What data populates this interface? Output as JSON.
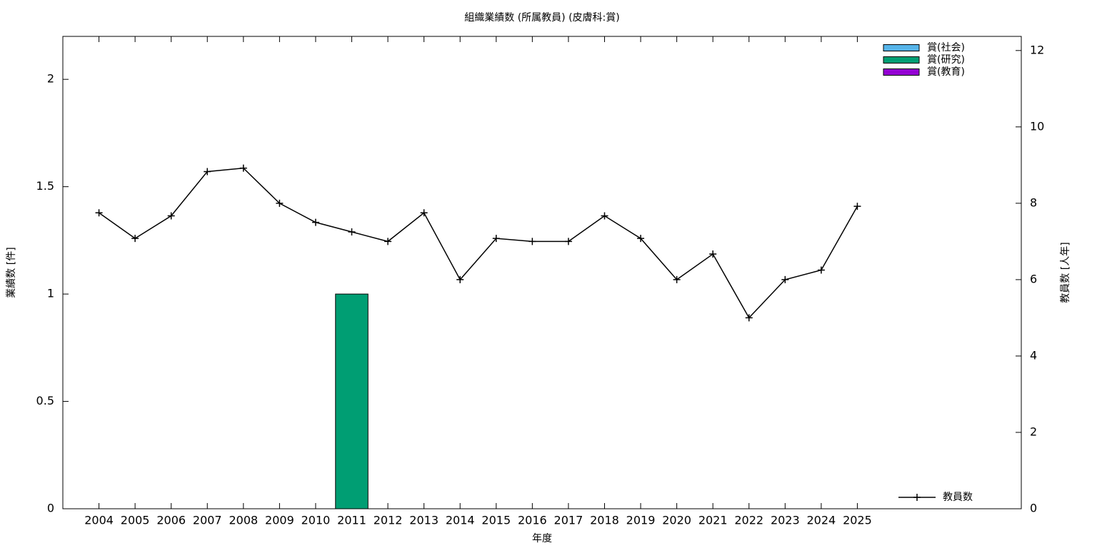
{
  "chart_data": {
    "type": "bar",
    "stacked": true,
    "title": "組織業績数 (所属教員) (皮膚科:賞)",
    "xlabel": "年度",
    "ylabel": "業績数 [件]",
    "y2label": "教員数 [人年]",
    "x": [
      2004,
      2005,
      2006,
      2007,
      2008,
      2009,
      2010,
      2011,
      2012,
      2013,
      2014,
      2015,
      2016,
      2017,
      2018,
      2019,
      2020,
      2021,
      2022,
      2023,
      2024,
      2025
    ],
    "xlim": [
      2003,
      2029.54
    ],
    "xticks": [
      2004,
      2005,
      2006,
      2007,
      2008,
      2009,
      2010,
      2011,
      2012,
      2013,
      2014,
      2015,
      2016,
      2017,
      2018,
      2019,
      2020,
      2021,
      2022,
      2023,
      2024,
      2025
    ],
    "ylim": [
      0,
      2.2
    ],
    "yticks": [
      0,
      0.5,
      1,
      1.5,
      2
    ],
    "y2lim": [
      0,
      12.37
    ],
    "y2ticks": [
      0,
      2,
      4,
      6,
      8,
      10,
      12
    ],
    "legend": "top-right",
    "series": [
      {
        "name": "賞(社会)",
        "color": "#56b4e9",
        "values": [
          0,
          0,
          0,
          0,
          0,
          0,
          0,
          0,
          0,
          0,
          0,
          0,
          0,
          0,
          0,
          0,
          0,
          0,
          0,
          0,
          0,
          0
        ]
      },
      {
        "name": "賞(研究)",
        "color": "#009e73",
        "values": [
          0,
          0,
          0,
          0,
          0,
          0,
          0,
          1,
          0,
          0,
          0,
          0,
          0,
          0,
          0,
          0,
          0,
          0,
          0,
          0,
          0,
          0
        ]
      },
      {
        "name": "賞(教育)",
        "color": "#9400d3",
        "values": [
          0,
          0,
          0,
          0,
          0,
          0,
          0,
          0,
          0,
          0,
          0,
          0,
          0,
          0,
          0,
          0,
          0,
          0,
          0,
          0,
          0,
          0
        ]
      },
      {
        "name": "教員数",
        "type": "line",
        "axis": "y2",
        "color": "#000000",
        "legend": "bottom-right",
        "values": [
          7.75,
          7.08,
          7.67,
          8.83,
          8.92,
          8,
          7.5,
          7.25,
          7,
          7.75,
          6,
          7.08,
          7,
          7,
          7.67,
          7.08,
          6,
          6.67,
          5,
          6,
          6.25,
          7.92
        ]
      }
    ]
  }
}
